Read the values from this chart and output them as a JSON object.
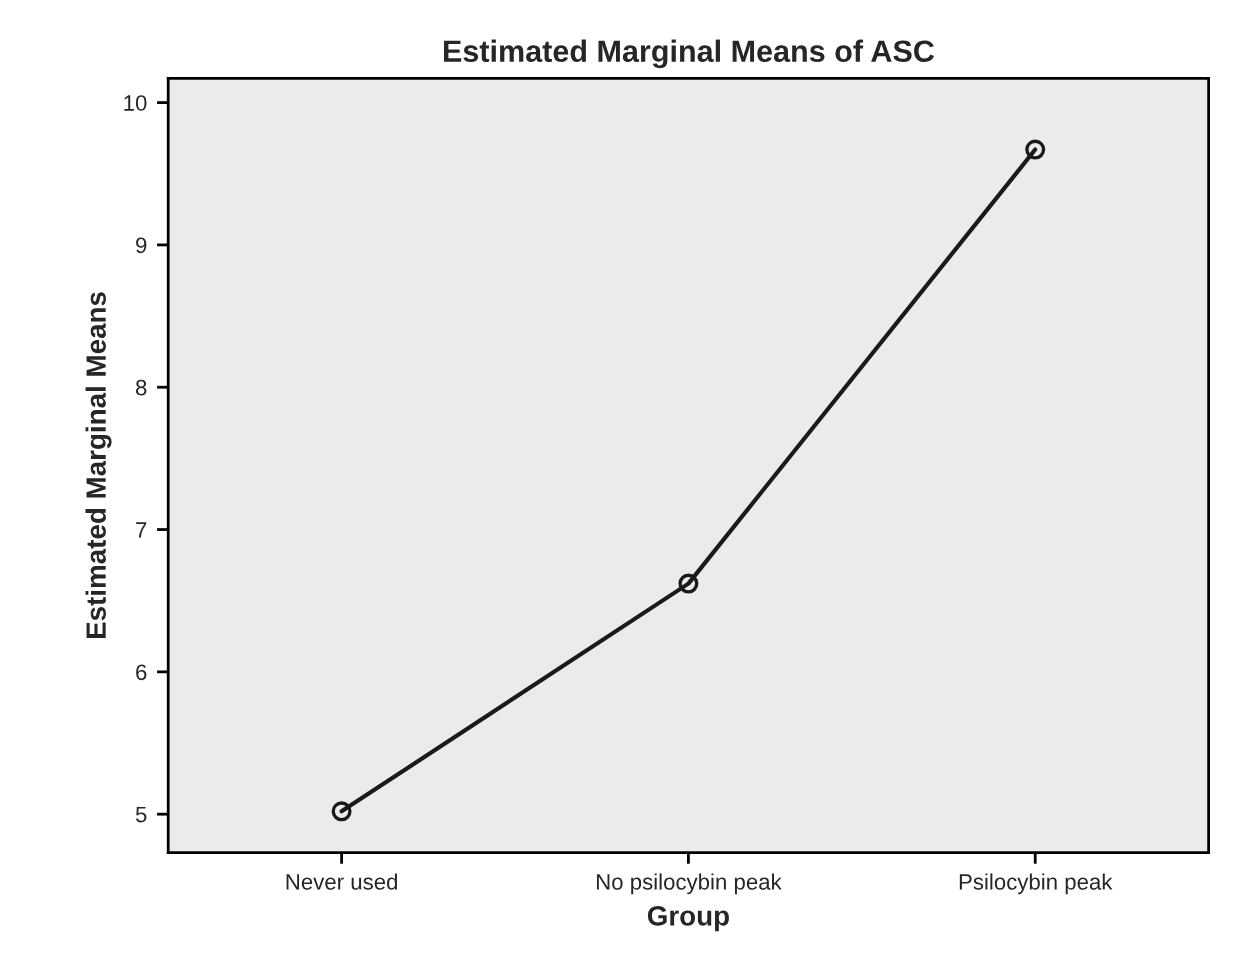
{
  "chart_data": {
    "type": "line",
    "title": "Estimated Marginal Means of ASC",
    "xlabel": "Group",
    "ylabel": "Estimated Marginal Means",
    "categories": [
      "Never used",
      "No psilocybin peak",
      "Psilocybin peak"
    ],
    "series": [
      {
        "color": "#1a1a1a",
        "values": [
          5.02,
          6.62,
          9.67
        ]
      }
    ],
    "ylim": [
      4.73,
      10.17
    ],
    "yticks": [
      5,
      6,
      7,
      8,
      9,
      10
    ],
    "grid": false,
    "legend": false,
    "marker": "circle",
    "line_style": "solid"
  }
}
